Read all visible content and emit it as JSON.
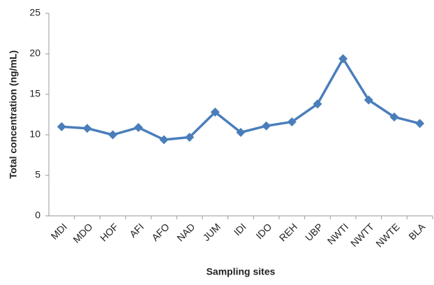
{
  "chart_data": {
    "type": "line",
    "x_label": "Sampling sites",
    "y_label": "Total concentration (ng/mL)",
    "categories": [
      "MDI",
      "MDO",
      "HOF",
      "AFI",
      "AFO",
      "NAD",
      "JUM",
      "IDI",
      "IDO",
      "REH",
      "UBP",
      "NWTI",
      "NWTT",
      "NWTE",
      "BLA"
    ],
    "series": [
      {
        "color": "#4a7ebb",
        "values": [
          11.0,
          10.8,
          10.0,
          10.9,
          9.4,
          9.7,
          12.8,
          10.3,
          11.1,
          11.6,
          13.8,
          19.4,
          14.3,
          12.2,
          11.4
        ]
      }
    ],
    "ylim": [
      0,
      25
    ],
    "yticks": [
      0,
      5,
      10,
      15,
      20,
      25
    ],
    "grid": false
  }
}
